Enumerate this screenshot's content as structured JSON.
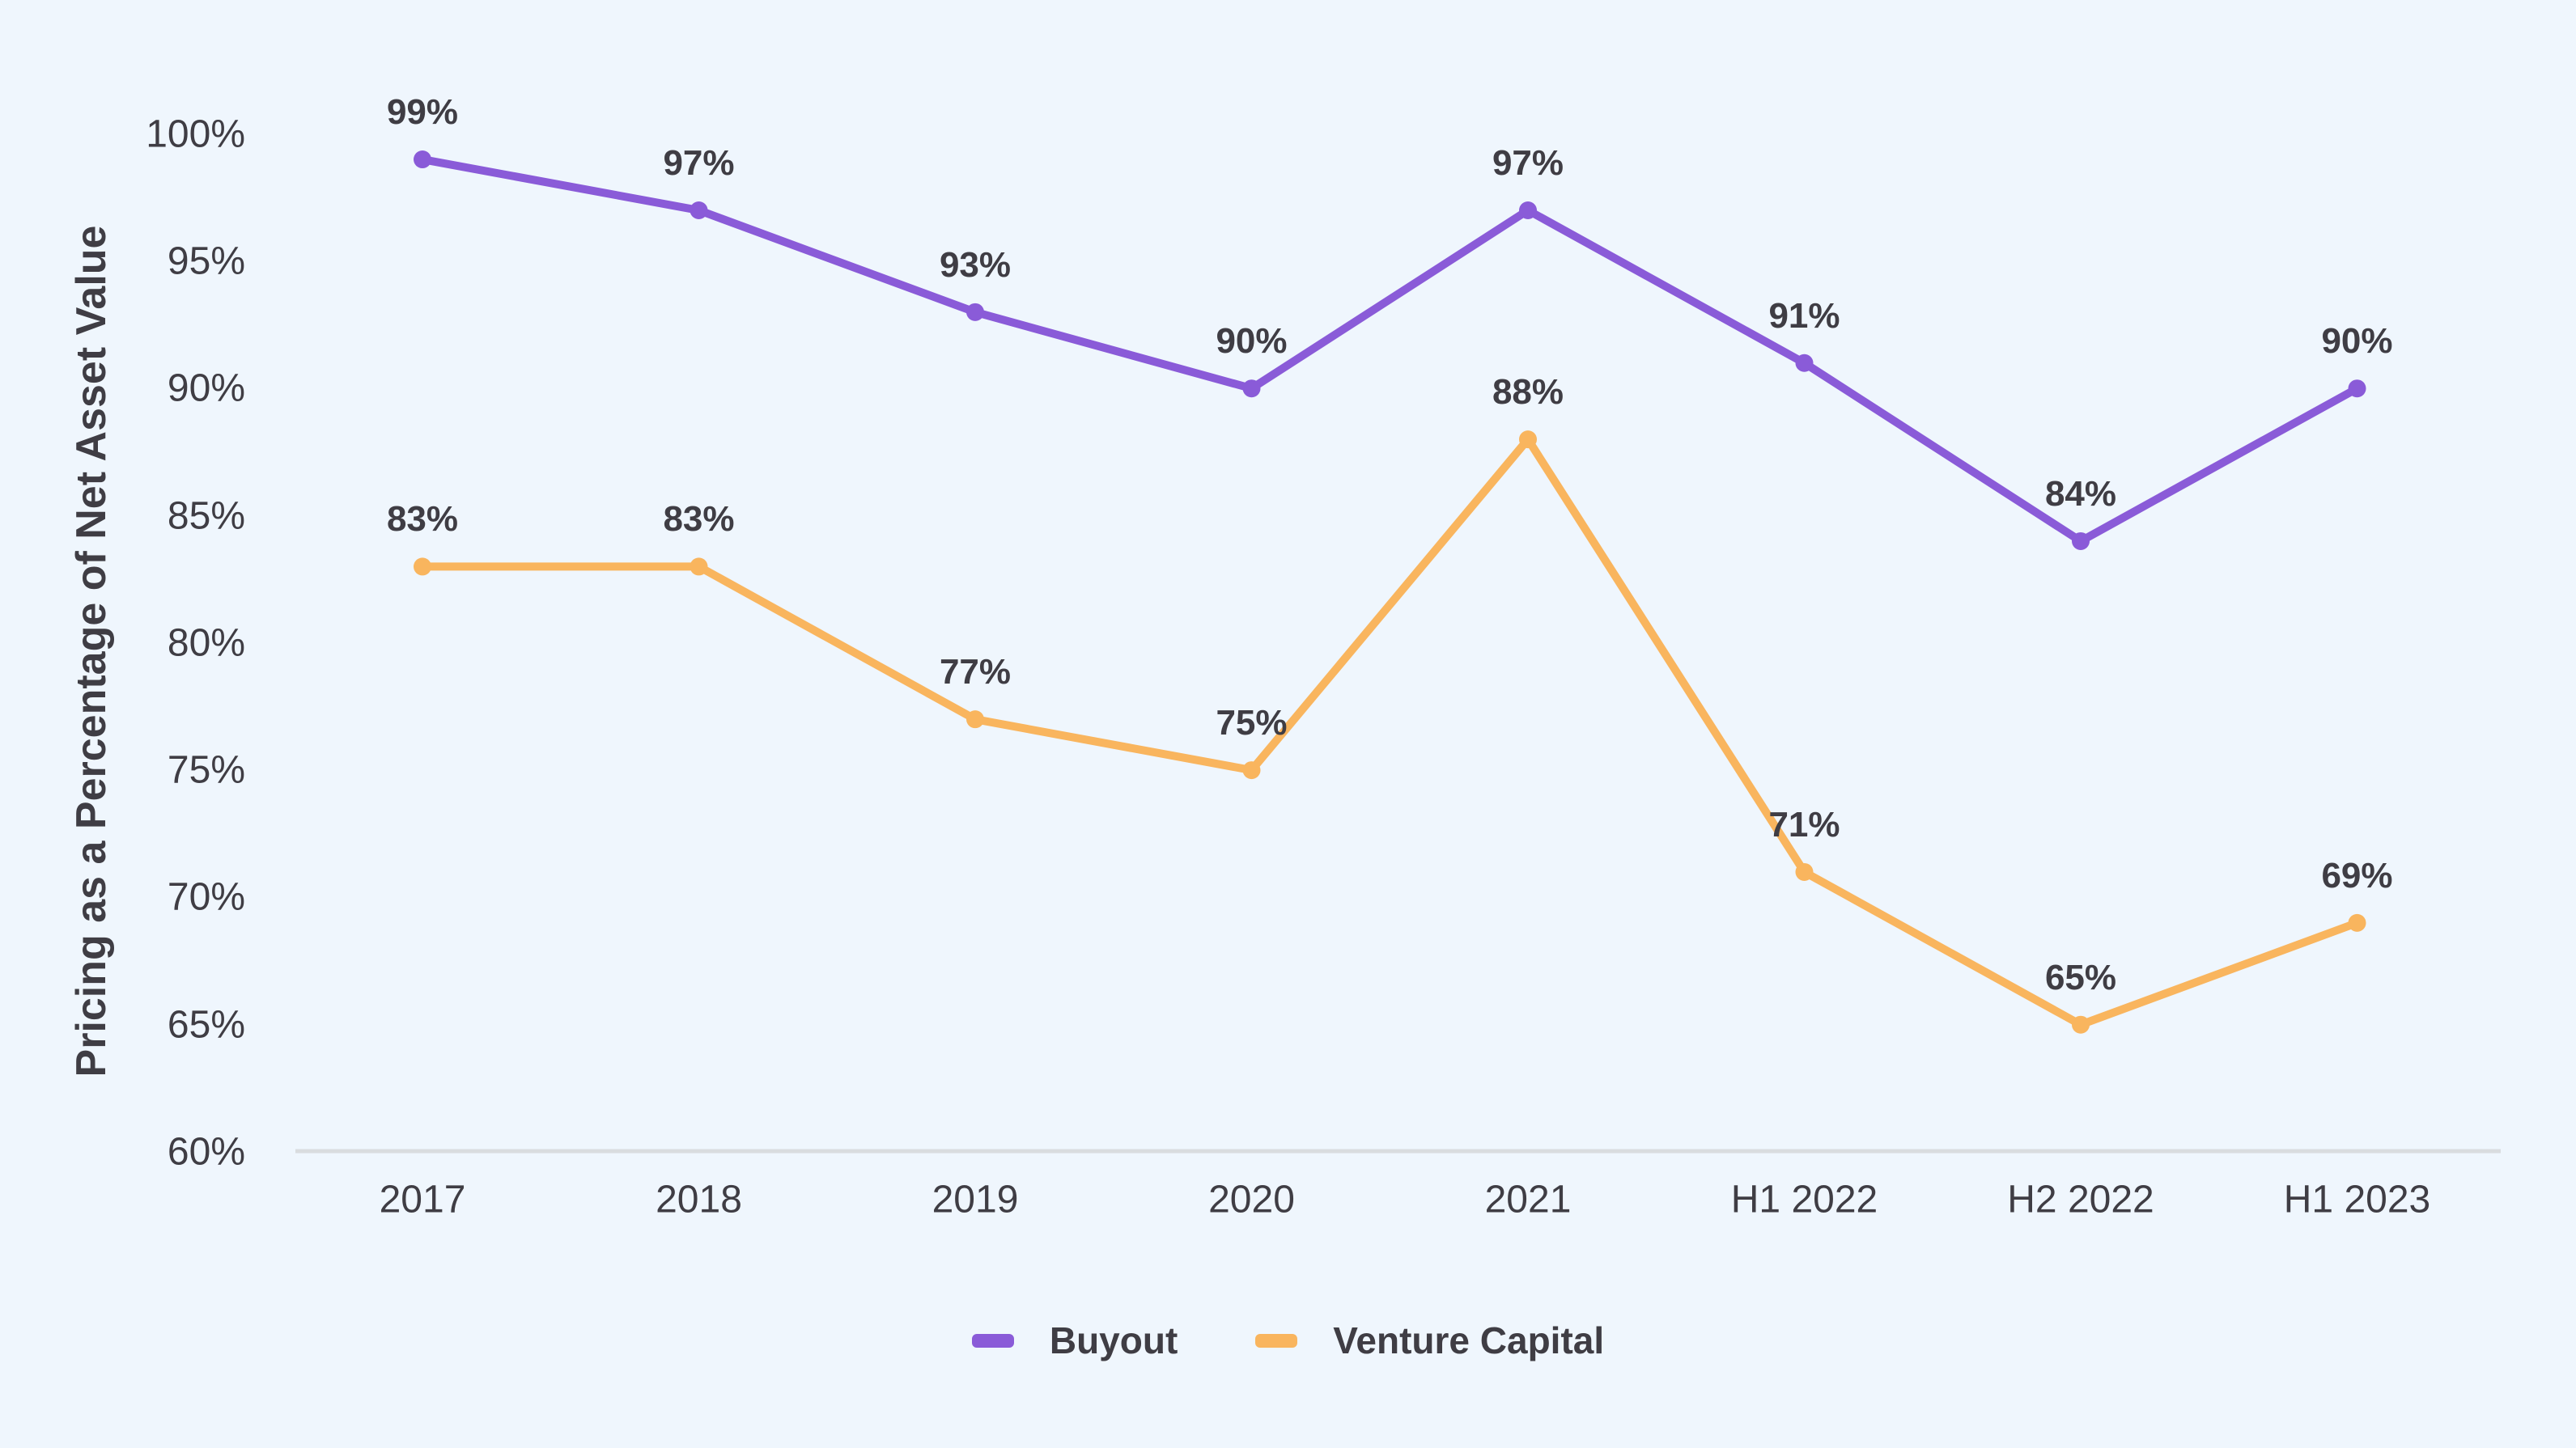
{
  "colors": {
    "background": "#eff6fd",
    "text": "#3f3d44",
    "axis_line": "#d9dcdf",
    "buyout": "#8a5bd8",
    "venture_capital": "#f9b55e"
  },
  "chart_data": {
    "type": "line",
    "title": "",
    "xlabel": "",
    "ylabel": "Pricing as a Percentage of Net Asset Value",
    "categories": [
      "2017",
      "2018",
      "2019",
      "2020",
      "2021",
      "H1 2022",
      "H2 2022",
      "H1 2023"
    ],
    "series": [
      {
        "name": "Buyout",
        "color": "#8a5bd8",
        "values": [
          99,
          97,
          93,
          90,
          97,
          91,
          84,
          90
        ],
        "labels": [
          "99%",
          "97%",
          "93%",
          "90%",
          "97%",
          "91%",
          "84%",
          "90%"
        ]
      },
      {
        "name": "Venture Capital",
        "color": "#f9b55e",
        "values": [
          83,
          83,
          77,
          75,
          88,
          71,
          65,
          69
        ],
        "labels": [
          "83%",
          "83%",
          "77%",
          "75%",
          "88%",
          "71%",
          "65%",
          "69%"
        ]
      }
    ],
    "yticks": [
      "100%",
      "95%",
      "90%",
      "85%",
      "80%",
      "75%",
      "70%",
      "65%",
      "60%"
    ],
    "ytick_values": [
      100,
      95,
      90,
      85,
      80,
      75,
      70,
      65,
      60
    ],
    "ylim": [
      60,
      100
    ],
    "grid": false,
    "data_labels_shown": true,
    "legend": {
      "position": "bottom",
      "items": [
        "Buyout",
        "Venture Capital"
      ]
    }
  }
}
